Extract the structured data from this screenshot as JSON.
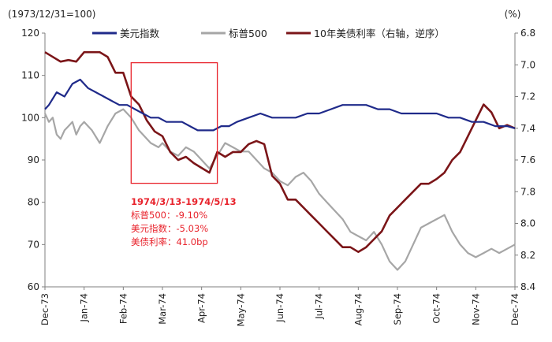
{
  "chart_data": {
    "type": "line",
    "left_unit_label": "(1973/12/31=100)",
    "right_unit_label": "(%)",
    "x_ticks": [
      "Dec-73",
      "Jan-74",
      "Feb-74",
      "Mar-74",
      "Apr-74",
      "May-74",
      "Jun-74",
      "Jul-74",
      "Aug-74",
      "Sep-74",
      "Oct-74",
      "Nov-74",
      "Dec-74"
    ],
    "y_left": {
      "ticks": [
        "60",
        "70",
        "80",
        "90",
        "100",
        "110",
        "120"
      ],
      "min": 60,
      "max": 120
    },
    "y_right": {
      "ticks": [
        "6.8",
        "7.0",
        "7.2",
        "7.4",
        "7.6",
        "7.8",
        "8.0",
        "8.2",
        "8.4"
      ],
      "min": 6.8,
      "max": 8.4,
      "inverted": true
    },
    "grid": false,
    "legend_position": "top",
    "series": [
      {
        "name": "美元指数",
        "axis": "left",
        "color": "#1f2a8a",
        "x": [
          0,
          0.1,
          0.3,
          0.5,
          0.7,
          0.9,
          1.1,
          1.3,
          1.5,
          1.7,
          1.9,
          2.1,
          2.3,
          2.5,
          2.7,
          2.9,
          3.1,
          3.3,
          3.5,
          3.7,
          3.9,
          4.1,
          4.3,
          4.5,
          4.7,
          4.9,
          5.2,
          5.5,
          5.8,
          6.1,
          6.4,
          6.7,
          7.0,
          7.3,
          7.6,
          7.9,
          8.2,
          8.5,
          8.8,
          9.1,
          9.4,
          9.7,
          10.0,
          10.3,
          10.6,
          10.9,
          11.2,
          11.5,
          11.8,
          12.0
        ],
        "values": [
          102,
          103,
          106,
          105,
          108,
          109,
          107,
          106,
          105,
          104,
          103,
          103,
          102,
          101,
          100,
          100,
          99,
          99,
          99,
          98,
          97,
          97,
          97,
          98,
          98,
          99,
          100,
          101,
          100,
          100,
          100,
          101,
          101,
          102,
          103,
          103,
          103,
          102,
          102,
          101,
          101,
          101,
          101,
          100,
          100,
          99,
          99,
          98,
          98,
          97.5
        ]
      },
      {
        "name": "标普500",
        "axis": "left",
        "color": "#a6a6a6",
        "x": [
          0,
          0.1,
          0.2,
          0.3,
          0.4,
          0.5,
          0.6,
          0.7,
          0.8,
          0.9,
          1.0,
          1.2,
          1.4,
          1.5,
          1.6,
          1.8,
          2.0,
          2.2,
          2.4,
          2.5,
          2.7,
          2.9,
          3.0,
          3.2,
          3.4,
          3.6,
          3.8,
          4.0,
          4.2,
          4.4,
          4.6,
          4.8,
          5.0,
          5.2,
          5.4,
          5.6,
          5.8,
          6.0,
          6.2,
          6.4,
          6.6,
          6.8,
          7.0,
          7.2,
          7.4,
          7.6,
          7.8,
          8.0,
          8.2,
          8.4,
          8.6,
          8.8,
          9.0,
          9.2,
          9.4,
          9.6,
          9.8,
          10.0,
          10.2,
          10.4,
          10.6,
          10.8,
          11.0,
          11.2,
          11.4,
          11.6,
          11.8,
          12.0
        ],
        "values": [
          101,
          99,
          100,
          96,
          95,
          97,
          98,
          99,
          96,
          98,
          99,
          97,
          94,
          96,
          98,
          101,
          102,
          100,
          97,
          96,
          94,
          93,
          94,
          92,
          91,
          93,
          92,
          90,
          88,
          91,
          94,
          93,
          92,
          92,
          90,
          88,
          87,
          85,
          84,
          86,
          87,
          85,
          82,
          80,
          78,
          76,
          73,
          72,
          71,
          73,
          70,
          66,
          64,
          66,
          70,
          74,
          75,
          76,
          77,
          73,
          70,
          68,
          67,
          68,
          69,
          68,
          69,
          70
        ]
      },
      {
        "name": "10年美债利率（右轴，逆序）",
        "axis": "right",
        "color": "#7b1518",
        "x": [
          0,
          0.2,
          0.4,
          0.6,
          0.8,
          1.0,
          1.2,
          1.4,
          1.6,
          1.8,
          2.0,
          2.2,
          2.4,
          2.6,
          2.8,
          3.0,
          3.2,
          3.4,
          3.6,
          3.8,
          4.0,
          4.2,
          4.4,
          4.6,
          4.8,
          5.0,
          5.2,
          5.4,
          5.6,
          5.8,
          6.0,
          6.2,
          6.4,
          6.6,
          6.8,
          7.0,
          7.2,
          7.4,
          7.6,
          7.8,
          8.0,
          8.2,
          8.4,
          8.6,
          8.8,
          9.0,
          9.2,
          9.4,
          9.6,
          9.8,
          10.0,
          10.2,
          10.4,
          10.6,
          10.8,
          11.0,
          11.2,
          11.4,
          11.6,
          11.8,
          12.0
        ],
        "values": [
          6.92,
          6.95,
          6.98,
          6.97,
          6.98,
          6.92,
          6.92,
          6.92,
          6.95,
          7.05,
          7.05,
          7.2,
          7.25,
          7.35,
          7.42,
          7.45,
          7.55,
          7.6,
          7.58,
          7.62,
          7.65,
          7.68,
          7.55,
          7.58,
          7.55,
          7.55,
          7.5,
          7.48,
          7.5,
          7.7,
          7.75,
          7.85,
          7.85,
          7.9,
          7.95,
          8.0,
          8.05,
          8.1,
          8.15,
          8.15,
          8.18,
          8.15,
          8.1,
          8.05,
          7.95,
          7.9,
          7.85,
          7.8,
          7.75,
          7.75,
          7.72,
          7.68,
          7.6,
          7.55,
          7.45,
          7.35,
          7.25,
          7.3,
          7.4,
          7.38,
          7.4
        ]
      }
    ],
    "annotation": {
      "lines": [
        "1974/3/13-1974/5/13",
        "标普500：-9.10%",
        "美元指数：-5.03%",
        "美债利率：41.0bp"
      ],
      "highlight_x_range": [
        2.2,
        4.4
      ],
      "highlight_left_range": [
        84.5,
        113
      ],
      "color": "#e8232c"
    }
  }
}
